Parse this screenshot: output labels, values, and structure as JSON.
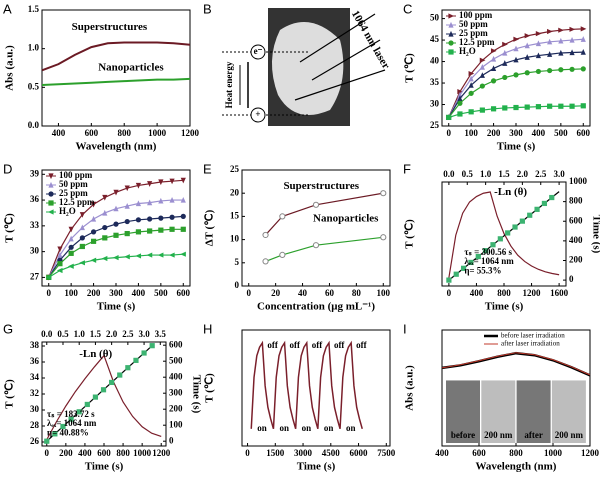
{
  "chart_data": [
    {
      "type": "line",
      "label": "A",
      "xlabel": "Wavelength (nm)",
      "ylabel": "Abs (a.u.)",
      "xlim": [
        300,
        1200
      ],
      "xticks": [
        400,
        600,
        800,
        1000,
        1200
      ],
      "ylim": [
        0,
        1.5
      ],
      "yticks": [
        {
          "value": 0,
          "label": "0.0"
        },
        {
          "value": 0.5,
          "label": "0.5"
        },
        {
          "value": 1,
          "label": "1.0"
        },
        {
          "value": 1.5,
          "label": "1.5"
        }
      ],
      "legend": "inline",
      "x": [
        300,
        400,
        500,
        600,
        700,
        800,
        900,
        1000,
        1100,
        1200
      ],
      "series": [
        {
          "name": "Superstructures",
          "color": "#6b1a24",
          "width": 2,
          "values": [
            0.72,
            0.8,
            0.92,
            1.02,
            1.07,
            1.08,
            1.08,
            1.08,
            1.07,
            1.05
          ]
        },
        {
          "name": "Nanoparticles",
          "color": "#2ca02c",
          "width": 2,
          "values": [
            0.53,
            0.54,
            0.55,
            0.56,
            0.57,
            0.58,
            0.59,
            0.6,
            0.6,
            0.61
          ]
        }
      ]
    },
    {
      "type": "image",
      "label": "B",
      "annotations": [
        "e⁻",
        "+",
        "Heat energy",
        "1064 nm laser"
      ]
    },
    {
      "type": "line",
      "label": "C",
      "xlabel": "Time (s)",
      "ylabel": "T (℃)",
      "xlim": [
        -30,
        630
      ],
      "xticks": [
        0,
        100,
        200,
        300,
        400,
        500,
        600
      ],
      "ylim": [
        25,
        52
      ],
      "yticks": [
        25,
        30,
        35,
        40,
        45,
        50
      ],
      "legend": "upper left",
      "x": [
        0,
        50,
        100,
        150,
        200,
        250,
        300,
        350,
        400,
        450,
        500,
        550,
        600
      ],
      "series": [
        {
          "name": "100 ppm",
          "color": "#7a1f2b",
          "marker": "triangle-right",
          "values": [
            27,
            33.0,
            37.2,
            40.3,
            42.5,
            44.0,
            45.2,
            46.0,
            46.5,
            47.0,
            47.3,
            47.5,
            47.6
          ]
        },
        {
          "name": "50 ppm",
          "color": "#9b8fd0",
          "marker": "triangle-up",
          "values": [
            27,
            32.2,
            36.0,
            38.7,
            40.6,
            42.0,
            43.0,
            43.7,
            44.2,
            44.6,
            44.8,
            45.0,
            45.2
          ]
        },
        {
          "name": "25 ppm",
          "color": "#1d2a5a",
          "marker": "triangle-up",
          "values": [
            27,
            31.4,
            34.5,
            36.8,
            38.4,
            39.6,
            40.4,
            41.0,
            41.4,
            41.7,
            42.0,
            42.1,
            42.2
          ]
        },
        {
          "name": "12.5 ppm",
          "color": "#2ca02c",
          "marker": "circle",
          "values": [
            27,
            30.3,
            32.6,
            34.3,
            35.5,
            36.3,
            36.9,
            37.4,
            37.7,
            37.9,
            38.1,
            38.2,
            38.3
          ]
        },
        {
          "name": "H₂O",
          "color": "#22b14c",
          "marker": "square",
          "values": [
            27,
            27.8,
            28.3,
            28.7,
            29.0,
            29.2,
            29.3,
            29.4,
            29.5,
            29.6,
            29.6,
            29.6,
            29.7
          ]
        }
      ]
    },
    {
      "type": "line",
      "label": "D",
      "xlabel": "Time (s)",
      "ylabel": "T (℃)",
      "xlim": [
        -30,
        630
      ],
      "xticks": [
        0,
        100,
        200,
        300,
        400,
        500,
        600
      ],
      "ylim": [
        26,
        39.5
      ],
      "yticks": [
        27,
        30,
        33,
        36,
        39
      ],
      "legend": "upper left",
      "x": [
        0,
        50,
        100,
        150,
        200,
        250,
        300,
        350,
        400,
        450,
        500,
        550,
        600
      ],
      "series": [
        {
          "name": "100 ppm",
          "color": "#7a1f2b",
          "marker": "triangle-down",
          "values": [
            27,
            30.3,
            32.6,
            34.3,
            35.5,
            36.3,
            36.9,
            37.4,
            37.7,
            37.9,
            38.1,
            38.2,
            38.3
          ]
        },
        {
          "name": "50 ppm",
          "color": "#9b8fd0",
          "marker": "triangle-up",
          "values": [
            27,
            29.6,
            31.5,
            32.8,
            33.8,
            34.5,
            35.0,
            35.3,
            35.6,
            35.7,
            35.9,
            36.0,
            36.0
          ]
        },
        {
          "name": "25 ppm",
          "color": "#1d2a5a",
          "marker": "circle",
          "values": [
            27,
            29.0,
            30.5,
            31.6,
            32.3,
            32.8,
            33.2,
            33.5,
            33.7,
            33.8,
            33.9,
            34.0,
            34.1
          ]
        },
        {
          "name": "12.5 ppm",
          "color": "#2ca02c",
          "marker": "square",
          "values": [
            27,
            28.6,
            29.8,
            30.6,
            31.2,
            31.6,
            31.9,
            32.1,
            32.3,
            32.4,
            32.5,
            32.6,
            32.6
          ]
        },
        {
          "name": "H₂O",
          "color": "#22b14c",
          "marker": "triangle-left",
          "values": [
            27,
            27.8,
            28.3,
            28.7,
            29.0,
            29.2,
            29.3,
            29.4,
            29.5,
            29.6,
            29.6,
            29.6,
            29.7
          ]
        }
      ]
    },
    {
      "type": "line",
      "label": "E",
      "xlabel": "Concentration (μg mL⁻¹)",
      "ylabel": "ΔT (℃)",
      "xlim": [
        -5,
        105
      ],
      "xticks": [
        0,
        20,
        40,
        60,
        80,
        100
      ],
      "ylim": [
        0,
        25
      ],
      "yticks": [
        0,
        5,
        10,
        15,
        20,
        25
      ],
      "legend": "inline",
      "x": [
        12.5,
        25,
        50,
        100
      ],
      "series": [
        {
          "name": "Superstructures",
          "color": "#6b1a24",
          "marker": "circle-open",
          "values": [
            11,
            15,
            17.5,
            20
          ]
        },
        {
          "name": "Nanoparticles",
          "color": "#2ca02c",
          "marker": "circle-open",
          "values": [
            5.3,
            6.7,
            8.8,
            10.5
          ]
        }
      ]
    },
    {
      "type": "line",
      "label": "F",
      "xlabel": "Time (s)",
      "ylabel": "T (℃)",
      "y2label": "Time (s)",
      "xlim": [
        -100,
        1700
      ],
      "xticks": [
        0,
        400,
        800,
        1200,
        1600
      ],
      "x2lim": [
        -0.1875,
        3.1875
      ],
      "x2ticks": [
        {
          "value": 0,
          "label": "0.0"
        },
        {
          "value": 0.5,
          "label": "0.5"
        },
        {
          "value": 1,
          "label": "1.0"
        },
        {
          "value": 1.5,
          "label": "1.5"
        },
        {
          "value": 2,
          "label": "2.0"
        },
        {
          "value": 2.5,
          "label": "2.5"
        },
        {
          "value": 3,
          "label": "3.0"
        }
      ],
      "ylim": [
        25,
        50
      ],
      "y2lim": [
        -60,
        1000
      ],
      "y2ticks": [
        0,
        200,
        400,
        600,
        800,
        1000
      ],
      "annotations": [
        "-Ln (θ)",
        "τₛ = 300.56 s",
        "λₑₓ= 1064 nm",
        "η= 55.3%"
      ],
      "series": [
        {
          "color": "#7a1f2b",
          "x": [
            0,
            100,
            200,
            300,
            400,
            500,
            600,
            700,
            800,
            900,
            1000,
            1100,
            1200,
            1300,
            1400,
            1500,
            1600
          ],
          "values": [
            27,
            37.2,
            42.5,
            45.2,
            46.5,
            47.3,
            47.6,
            41.8,
            37.6,
            34.6,
            32.4,
            30.9,
            29.8,
            29.0,
            28.4,
            28.0,
            27.7
          ]
        },
        {
          "color": "#000000",
          "xaxis": "x2",
          "axis": "y2",
          "x": [
            0,
            3.0
          ],
          "values": [
            0,
            901.7
          ]
        },
        {
          "color": "#3cb371",
          "style": "points",
          "marker": "square",
          "xaxis": "x2",
          "axis": "y2",
          "x": [
            0,
            0.2,
            0.4,
            0.6,
            0.8,
            1.0,
            1.2,
            1.4,
            1.6,
            1.8,
            2.0,
            2.2,
            2.4,
            2.6,
            2.8
          ],
          "values": [
            0,
            60.1,
            120.2,
            180.3,
            240.4,
            300.6,
            360.7,
            420.8,
            480.9,
            540.9,
            601.1,
            661.2,
            721.3,
            781.5,
            841.6
          ]
        }
      ]
    },
    {
      "type": "line",
      "label": "G",
      "xlabel": "Time (s)",
      "ylabel": "T (℃)",
      "y2label": "Time (s)",
      "xlim": [
        -50,
        1250
      ],
      "xticks": [
        0,
        200,
        400,
        600,
        800,
        1000,
        1200
      ],
      "x2lim": [
        -0.147,
        3.676
      ],
      "x2ticks": [
        {
          "value": 0,
          "label": "0.0"
        },
        {
          "value": 0.5,
          "label": "0.5"
        },
        {
          "value": 1,
          "label": "1.0"
        },
        {
          "value": 1.5,
          "label": "1.5"
        },
        {
          "value": 2,
          "label": "2.0"
        },
        {
          "value": 2.5,
          "label": "2.5"
        },
        {
          "value": 3,
          "label": "3.0"
        },
        {
          "value": 3.5,
          "label": "3.5"
        }
      ],
      "ylim": [
        25.5,
        38.5
      ],
      "yticks": [
        26,
        28,
        30,
        32,
        34,
        36,
        38
      ],
      "y2lim": [
        -30,
        620
      ],
      "y2ticks": [
        0,
        100,
        200,
        300,
        400,
        500,
        600
      ],
      "annotations": [
        "-Ln (θ)",
        "τₛ = 183.72 s",
        "λₑₓ= 1064 nm",
        "η= 40.88%"
      ],
      "series": [
        {
          "color": "#7a1f2b",
          "x": [
            0,
            100,
            200,
            300,
            400,
            500,
            600,
            700,
            800,
            900,
            1000,
            1100,
            1200
          ],
          "values": [
            26.3,
            28.5,
            30.5,
            32.3,
            33.9,
            35.4,
            36.8,
            33.5,
            31.0,
            29.2,
            27.9,
            27.1,
            26.7
          ]
        },
        {
          "color": "#000000",
          "xaxis": "x2",
          "axis": "y2",
          "x": [
            0,
            3.3
          ],
          "values": [
            0,
            606.3
          ]
        },
        {
          "color": "#3cb371",
          "style": "points",
          "marker": "square",
          "xaxis": "x2",
          "axis": "y2",
          "x": [
            0,
            0.25,
            0.5,
            0.75,
            1.0,
            1.25,
            1.5,
            1.75,
            2.0,
            2.25,
            2.5,
            2.75,
            3.0,
            3.25
          ],
          "values": [
            0,
            45.9,
            91.9,
            137.8,
            183.7,
            229.7,
            275.6,
            321.5,
            367.4,
            413.4,
            459.3,
            505.2,
            551.2,
            597.1
          ]
        }
      ]
    },
    {
      "type": "line",
      "label": "H",
      "xlabel": "Time (s)",
      "ylabel": "T (℃)",
      "xlim": [
        -300,
        7700
      ],
      "xticks": [
        0,
        1500,
        3000,
        4500,
        6000,
        7500
      ],
      "ylim": [
        24,
        51
      ],
      "annotations": [
        "on",
        "off",
        "on",
        "off",
        "on",
        "off",
        "on",
        "off",
        "on",
        "off"
      ],
      "series": [
        {
          "color": "#7a1f2b",
          "width": 1.5,
          "x": [
            200,
            350,
            500,
            650,
            800,
            950,
            1100,
            1250,
            1400,
            1550,
            1700,
            1850,
            2000,
            2150,
            2300,
            2450,
            2600,
            2750,
            2900,
            3050,
            3200,
            3350,
            3500,
            3650,
            3800,
            3950,
            4100,
            4250,
            4400,
            4550,
            4700,
            4850,
            5000,
            5150,
            5300,
            5450,
            5600,
            5750,
            5900,
            6050,
            6200
          ],
          "values": [
            28,
            40,
            45,
            47,
            48,
            38,
            33,
            30.3,
            28,
            40,
            45,
            47,
            48,
            38,
            33,
            30.3,
            28,
            40,
            45,
            47,
            48,
            38,
            33,
            30.3,
            28,
            40,
            45,
            47,
            48,
            38,
            33,
            30.3,
            28,
            40,
            45,
            47,
            48,
            38,
            33,
            30.3,
            28
          ]
        }
      ]
    },
    {
      "type": "line",
      "label": "I",
      "xlabel": "Wavelength (nm)",
      "ylabel": "Abs (a.u.)",
      "xlim": [
        400,
        1200
      ],
      "xticks": [
        400,
        600,
        800,
        1000,
        1200
      ],
      "ylim": [
        0,
        2.3
      ],
      "legend": "upper right",
      "inset_labels": [
        "before",
        "200 nm",
        "after",
        "200 nm"
      ],
      "x": [
        400,
        500,
        600,
        700,
        800,
        900,
        1000,
        1100,
        1200
      ],
      "series": [
        {
          "name": "before laser irradiation",
          "color": "#000000",
          "width": 2.5,
          "values": [
            1.55,
            1.6,
            1.68,
            1.77,
            1.84,
            1.8,
            1.7,
            1.56,
            1.4
          ]
        },
        {
          "name": "after laser irradiation",
          "color": "#c0392b",
          "width": 1,
          "values": [
            1.55,
            1.61,
            1.69,
            1.78,
            1.85,
            1.81,
            1.71,
            1.57,
            1.41
          ]
        }
      ]
    }
  ]
}
